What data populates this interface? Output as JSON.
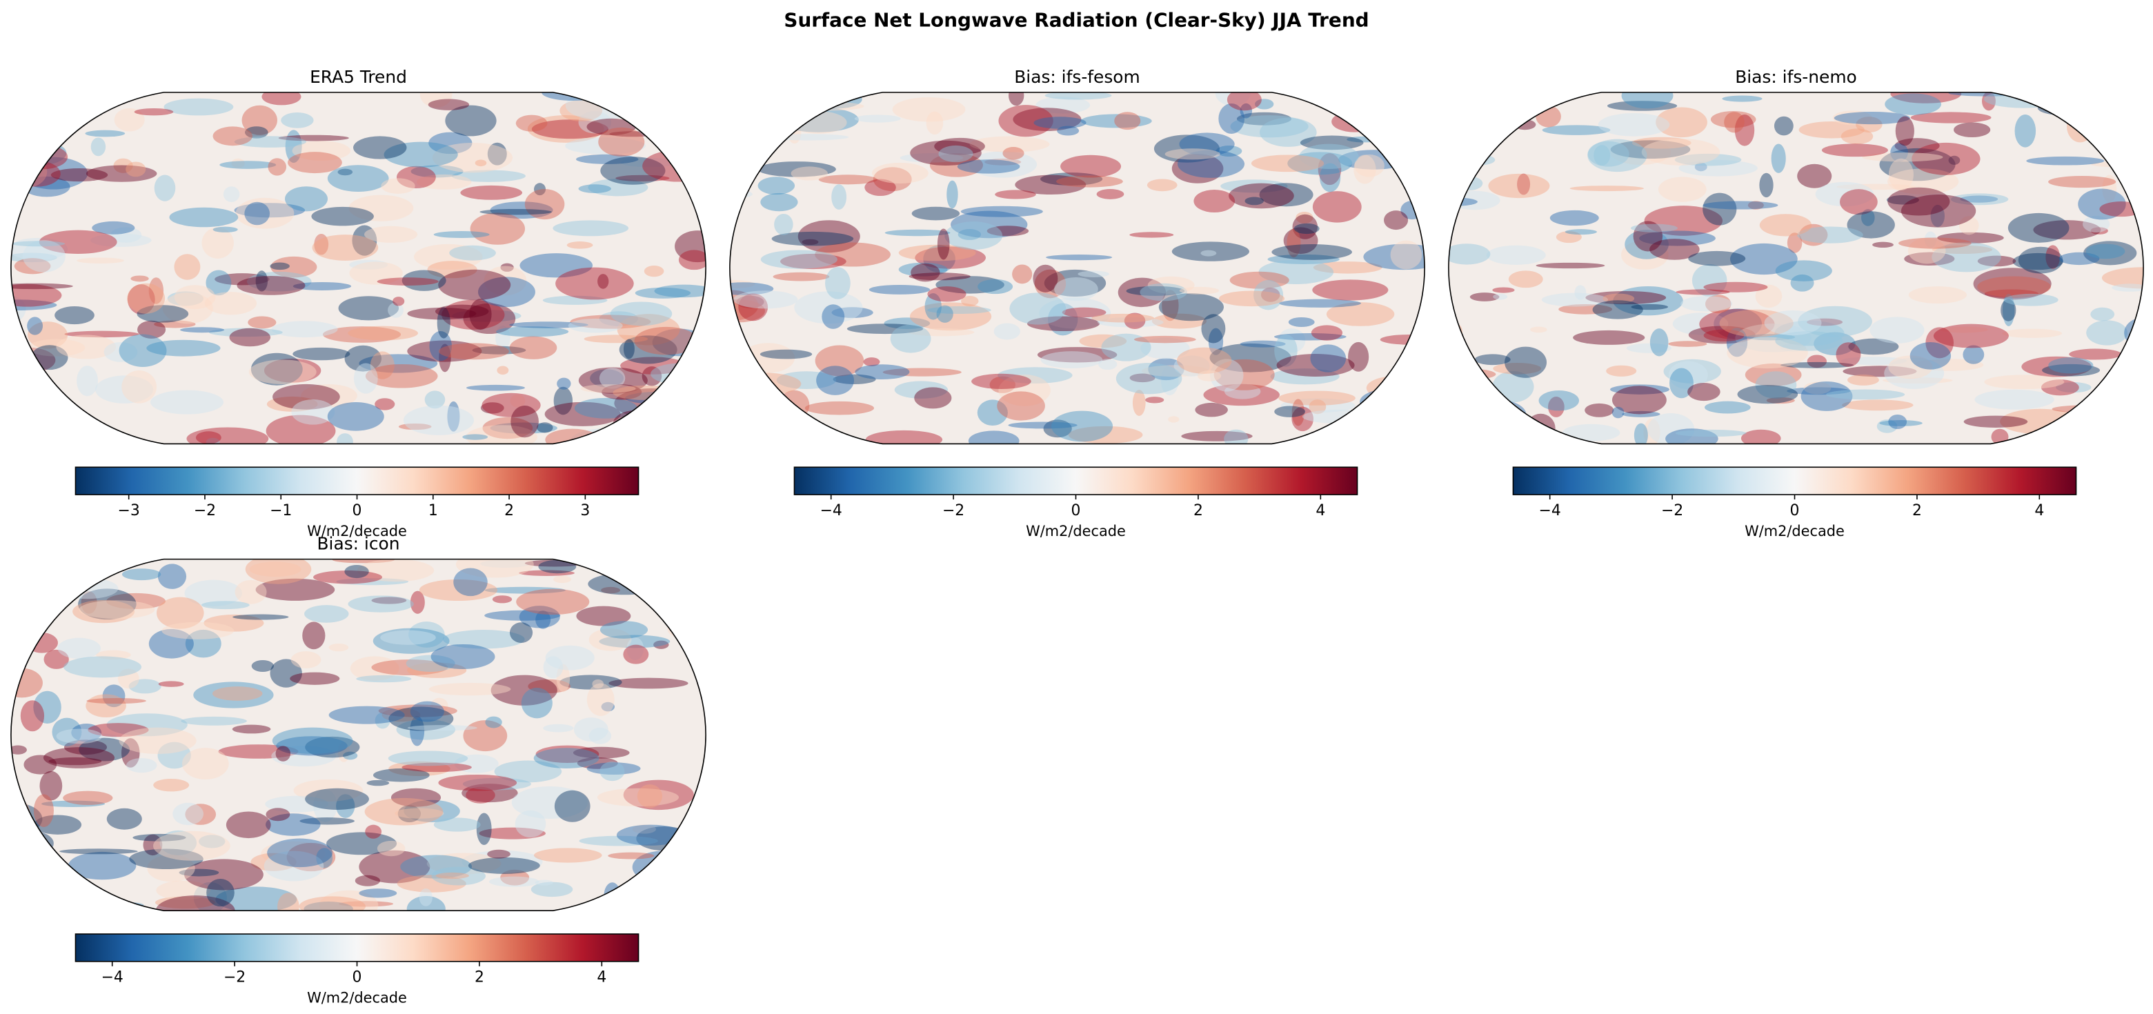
{
  "title": "Surface Net Longwave Radiation (Clear-Sky) JJA Trend",
  "panels": [
    {
      "title": "ERA5 Trend",
      "colorbar": {
        "label": "W/m2/decade",
        "lim": [
          -3.7,
          3.7
        ],
        "ticks": [
          {
            "value": -3,
            "label": "−3"
          },
          {
            "value": -2,
            "label": "−2"
          },
          {
            "value": -1,
            "label": "−1"
          },
          0,
          1,
          2,
          3
        ]
      }
    },
    {
      "title": "Bias: ifs-fesom",
      "colorbar": {
        "label": "W/m2/decade",
        "lim": [
          -4.6,
          4.6
        ],
        "ticks": [
          {
            "value": -4,
            "label": "−4"
          },
          {
            "value": -2,
            "label": "−2"
          },
          0,
          2,
          4
        ]
      }
    },
    {
      "title": "Bias: ifs-nemo",
      "colorbar": {
        "label": "W/m2/decade",
        "lim": [
          -4.6,
          4.6
        ],
        "ticks": [
          {
            "value": -4,
            "label": "−4"
          },
          {
            "value": -2,
            "label": "−2"
          },
          0,
          2,
          4
        ]
      }
    },
    {
      "title": "Bias: icon",
      "colorbar": {
        "label": "W/m2/decade",
        "lim": [
          -4.6,
          4.6
        ],
        "ticks": [
          {
            "value": -4,
            "label": "−4"
          },
          {
            "value": -2,
            "label": "−2"
          },
          0,
          2,
          4
        ]
      }
    }
  ]
}
